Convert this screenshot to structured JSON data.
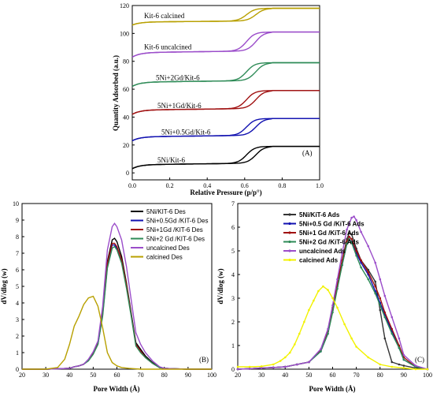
{
  "chart_data": [
    {
      "type": "line",
      "panel": "(A)",
      "xlabel": "Relative Pressure (p/p°)",
      "ylabel": "Quantity Adsorbed (a.u.)",
      "xlim": [
        0,
        1.0
      ],
      "ylim": [
        -5,
        120
      ],
      "xticks": [
        "0.0",
        "0.2",
        "0.4",
        "0.6",
        "0.8",
        "1.0"
      ],
      "yticks": [
        "0",
        "20",
        "40",
        "60",
        "80",
        "100",
        "120"
      ],
      "series": [
        {
          "name": "5Ni/Kit-6",
          "color": "#000000",
          "base": 3,
          "plateau": 19
        },
        {
          "name": "5Ni+0.5Gd/Kit-6",
          "color": "#1010b0",
          "base": 23,
          "plateau": 39
        },
        {
          "name": "5Ni+1Gd/Kit-6",
          "color": "#a01010",
          "base": 42,
          "plateau": 59
        },
        {
          "name": "5Ni+2Gd/Kit-6",
          "color": "#2e8b57",
          "base": 62,
          "plateau": 79
        },
        {
          "name": "Kit-6 uncalcined",
          "color": "#9b4dca",
          "base": 83,
          "plateau": 101
        },
        {
          "name": "Kit-6 calcined",
          "color": "#b8a000",
          "base": 106,
          "plateau": 118
        }
      ]
    },
    {
      "type": "line",
      "panel": "(B)",
      "xlabel": "Pore Width (Å)",
      "ylabel": "dV/dlog (w)",
      "xlim": [
        20,
        100
      ],
      "ylim": [
        0,
        10
      ],
      "xticks": [
        "20",
        "30",
        "40",
        "50",
        "60",
        "70",
        "80",
        "90",
        "100"
      ],
      "yticks": [
        "0",
        "1",
        "2",
        "3",
        "4",
        "5",
        "6",
        "7",
        "8",
        "9",
        "10"
      ],
      "series": [
        {
          "name": "5Ni/KIT-6 Des",
          "color": "#000000",
          "x": [
            20,
            30,
            40,
            42,
            44,
            46,
            48,
            50,
            52,
            54,
            56,
            58,
            59,
            60,
            62,
            64,
            66,
            68,
            70,
            72,
            75,
            78,
            80,
            85,
            90,
            95,
            100
          ],
          "y": [
            0,
            0,
            0.05,
            0.15,
            0.2,
            0.3,
            0.55,
            1.0,
            1.6,
            3.5,
            6.5,
            7.8,
            7.9,
            7.7,
            6.8,
            5.2,
            3.4,
            1.6,
            1.2,
            0.8,
            0.4,
            0.1,
            0.05,
            0.02,
            0,
            0,
            0
          ]
        },
        {
          "name": "5Ni+0.5Gd /KIT-6 Des",
          "color": "#1010b0",
          "x": [
            20,
            30,
            40,
            42,
            44,
            46,
            48,
            50,
            52,
            54,
            56,
            58,
            59,
            60,
            62,
            64,
            66,
            68,
            70,
            72,
            75,
            78,
            80,
            85,
            90,
            95,
            100
          ],
          "y": [
            0,
            0,
            0.05,
            0.15,
            0.2,
            0.3,
            0.55,
            0.95,
            1.5,
            3.3,
            6.2,
            7.5,
            7.5,
            7.3,
            6.5,
            5.0,
            3.3,
            1.5,
            1.1,
            0.7,
            0.35,
            0.1,
            0.05,
            0.02,
            0,
            0,
            0
          ]
        },
        {
          "name": "5Ni+1Gd /KIT-6 Des",
          "color": "#a01010",
          "x": [
            20,
            30,
            40,
            42,
            44,
            46,
            48,
            50,
            52,
            54,
            56,
            58,
            59,
            60,
            62,
            64,
            66,
            68,
            70,
            72,
            75,
            78,
            80,
            85,
            90,
            95,
            100
          ],
          "y": [
            0,
            0,
            0.05,
            0.15,
            0.2,
            0.3,
            0.55,
            1.0,
            1.6,
            3.4,
            6.4,
            7.6,
            7.6,
            7.4,
            6.6,
            5.1,
            3.3,
            1.5,
            1.1,
            0.7,
            0.35,
            0.1,
            0.05,
            0.02,
            0,
            0,
            0
          ]
        },
        {
          "name": "5Ni+2 Gd /KIT-6 Des",
          "color": "#2e8b57",
          "x": [
            20,
            30,
            40,
            42,
            44,
            46,
            48,
            50,
            52,
            54,
            56,
            58,
            59,
            60,
            62,
            64,
            66,
            68,
            70,
            72,
            75,
            78,
            80,
            85,
            90,
            95,
            100
          ],
          "y": [
            0,
            0,
            0.05,
            0.15,
            0.2,
            0.3,
            0.5,
            0.9,
            1.5,
            3.2,
            6.1,
            7.3,
            7.4,
            7.2,
            6.4,
            4.9,
            3.2,
            1.4,
            1.0,
            0.7,
            0.35,
            0.1,
            0.05,
            0.02,
            0,
            0,
            0
          ]
        },
        {
          "name": "uncalcined Des",
          "color": "#9b4dca",
          "x": [
            20,
            30,
            40,
            42,
            44,
            46,
            48,
            50,
            52,
            54,
            56,
            58,
            59,
            60,
            62,
            64,
            66,
            68,
            70,
            72,
            75,
            78,
            80,
            85,
            90,
            95,
            100
          ],
          "y": [
            0,
            0,
            0.05,
            0.15,
            0.2,
            0.3,
            0.6,
            1.05,
            1.7,
            3.8,
            7.2,
            8.6,
            8.8,
            8.6,
            7.8,
            6.2,
            4.2,
            2.2,
            1.5,
            1.0,
            0.5,
            0.15,
            0.05,
            0.02,
            0,
            0,
            0
          ]
        },
        {
          "name": "calcined Des",
          "color": "#b8a000",
          "x": [
            20,
            30,
            35,
            38,
            40,
            42,
            44,
            46,
            48,
            50,
            52,
            54,
            56,
            58,
            60,
            62,
            65,
            70,
            75,
            80,
            90,
            100
          ],
          "y": [
            0,
            0,
            0.1,
            0.6,
            1.5,
            2.6,
            3.2,
            3.9,
            4.3,
            4.4,
            3.8,
            2.5,
            1.0,
            0.4,
            0.2,
            0.1,
            0.05,
            0,
            0,
            0,
            0,
            0
          ]
        }
      ]
    },
    {
      "type": "line",
      "panel": "(C)",
      "xlabel": "Pore Width (Å)",
      "ylabel": "dV/dlog (w)",
      "xlim": [
        20,
        100
      ],
      "ylim": [
        0,
        7
      ],
      "xticks": [
        "20",
        "30",
        "40",
        "50",
        "60",
        "70",
        "80",
        "90",
        "100"
      ],
      "yticks": [
        "0",
        "1",
        "2",
        "3",
        "4",
        "5",
        "6",
        "7"
      ],
      "series": [
        {
          "name": "5Ni/KiT-6 Ads",
          "color": "#333333",
          "x": [
            20,
            25,
            30,
            35,
            40,
            45,
            50,
            55,
            58,
            60,
            62,
            64,
            66,
            67,
            68,
            70,
            72,
            75,
            78,
            80,
            82,
            85,
            88,
            90,
            95,
            100
          ],
          "y": [
            0,
            0.02,
            0.05,
            0.07,
            0.1,
            0.2,
            0.3,
            0.8,
            1.6,
            2.6,
            3.6,
            4.6,
            5.5,
            5.75,
            5.7,
            5.1,
            4.6,
            4.2,
            3.7,
            2.5,
            1.3,
            0.3,
            0.2,
            0.15,
            0.05,
            0
          ]
        },
        {
          "name": "5Ni+0.5 Gd /KiT-6 Ads",
          "color": "#1010b0",
          "x": [
            20,
            25,
            30,
            35,
            40,
            45,
            50,
            55,
            58,
            60,
            62,
            64,
            66,
            67,
            68,
            70,
            72,
            75,
            78,
            80,
            82,
            85,
            88,
            90,
            95,
            100
          ],
          "y": [
            0,
            0.02,
            0.05,
            0.07,
            0.1,
            0.2,
            0.3,
            0.75,
            1.5,
            2.5,
            3.5,
            4.4,
            5.3,
            5.45,
            5.4,
            4.9,
            4.5,
            4.0,
            3.3,
            2.8,
            2.3,
            1.6,
            0.9,
            0.4,
            0.1,
            0
          ]
        },
        {
          "name": "5Ni+1 Gd /KiT-6 Ads",
          "color": "#a01010",
          "x": [
            20,
            25,
            30,
            35,
            40,
            45,
            50,
            55,
            58,
            60,
            62,
            64,
            66,
            67,
            68,
            70,
            72,
            75,
            78,
            80,
            82,
            85,
            88,
            90,
            95,
            100
          ],
          "y": [
            0,
            0.02,
            0.05,
            0.07,
            0.1,
            0.2,
            0.3,
            0.8,
            1.6,
            2.6,
            3.6,
            4.6,
            5.4,
            5.6,
            5.5,
            5.0,
            4.6,
            4.1,
            3.5,
            3.0,
            2.4,
            1.7,
            1.0,
            0.5,
            0.1,
            0
          ]
        },
        {
          "name": "5Ni+2 Gd /KiT-6 Ads",
          "color": "#2e8b57",
          "x": [
            20,
            25,
            30,
            35,
            40,
            45,
            50,
            55,
            58,
            60,
            62,
            64,
            66,
            67,
            68,
            70,
            72,
            75,
            78,
            80,
            82,
            85,
            88,
            90,
            95,
            100
          ],
          "y": [
            0,
            0.02,
            0.05,
            0.07,
            0.1,
            0.2,
            0.3,
            0.75,
            1.5,
            2.4,
            3.4,
            4.4,
            5.3,
            5.5,
            5.35,
            4.8,
            4.3,
            3.8,
            3.2,
            2.7,
            2.2,
            1.5,
            0.9,
            0.4,
            0.1,
            0
          ]
        },
        {
          "name": "uncalcined  Ads",
          "color": "#9b4dca",
          "x": [
            20,
            25,
            30,
            35,
            40,
            45,
            50,
            55,
            58,
            60,
            62,
            64,
            66,
            68,
            69,
            70,
            72,
            75,
            78,
            80,
            82,
            85,
            88,
            90,
            95,
            100
          ],
          "y": [
            0,
            0.02,
            0.05,
            0.07,
            0.1,
            0.2,
            0.3,
            0.85,
            1.7,
            2.7,
            3.8,
            4.9,
            5.9,
            6.4,
            6.45,
            6.3,
            5.8,
            5.2,
            4.5,
            3.8,
            3.1,
            2.2,
            1.3,
            0.6,
            0.15,
            0
          ]
        },
        {
          "name": "calcined  Ads",
          "color": "#f2f200",
          "x": [
            20,
            25,
            30,
            35,
            38,
            40,
            42,
            44,
            46,
            48,
            50,
            52,
            54,
            56,
            58,
            60,
            62,
            65,
            68,
            70,
            75,
            80,
            85,
            90,
            95,
            100
          ],
          "y": [
            0.1,
            0.1,
            0.12,
            0.2,
            0.35,
            0.5,
            0.7,
            1.05,
            1.5,
            2.0,
            2.5,
            2.9,
            3.3,
            3.5,
            3.35,
            3.0,
            2.6,
            1.9,
            1.3,
            0.95,
            0.5,
            0.2,
            0.1,
            0.05,
            0,
            0
          ]
        }
      ]
    }
  ]
}
